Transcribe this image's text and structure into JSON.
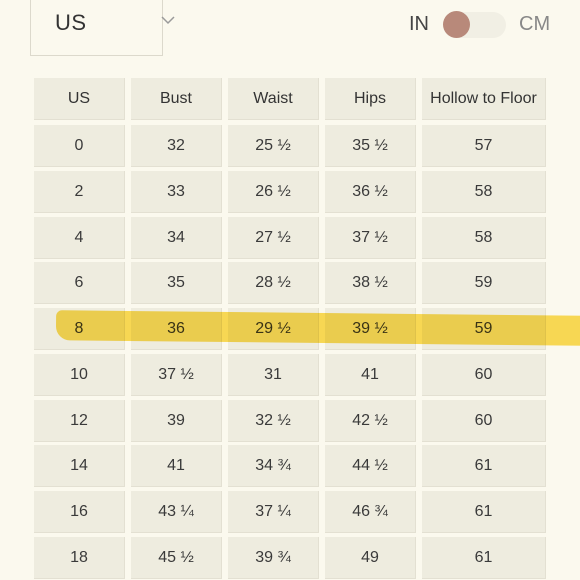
{
  "region_select": {
    "value": "US",
    "icon": "chevron-down-icon"
  },
  "unit_toggle": {
    "left_label": "IN",
    "right_label": "CM",
    "selected": "IN",
    "knob_color": "#b8897a"
  },
  "highlight": {
    "color": "#fad73c",
    "row_size": "8"
  },
  "table": {
    "headers": [
      "US",
      "Bust",
      "Waist",
      "Hips",
      "Hollow to Floor"
    ],
    "rows": [
      [
        "0",
        "32",
        "25 ½",
        "35 ½",
        "57"
      ],
      [
        "2",
        "33",
        "26 ½",
        "36 ½",
        "58"
      ],
      [
        "4",
        "34",
        "27 ½",
        "37 ½",
        "58"
      ],
      [
        "6",
        "35",
        "28 ½",
        "38 ½",
        "59"
      ],
      [
        "8",
        "36",
        "29 ½",
        "39 ½",
        "59"
      ],
      [
        "10",
        "37 ½",
        "31",
        "41",
        "60"
      ],
      [
        "12",
        "39",
        "32 ½",
        "42 ½",
        "60"
      ],
      [
        "14",
        "41",
        "34 ¾",
        "44 ½",
        "61"
      ],
      [
        "16",
        "43 ¼",
        "37 ¼",
        "46 ¾",
        "61"
      ],
      [
        "18",
        "45 ½",
        "39 ¾",
        "49",
        "61"
      ]
    ]
  }
}
